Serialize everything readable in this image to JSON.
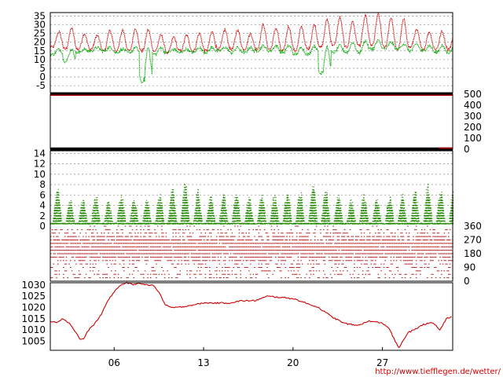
{
  "footer": {
    "url": "http://www.tiefflegen.de/wetter/"
  },
  "chart_data": [
    {
      "type": "line",
      "panel": "temperature",
      "x_start_day": 1,
      "x_end_day": 32.5,
      "ylim": [
        -9,
        37
      ],
      "yticks": [
        -5,
        0,
        5,
        10,
        15,
        20,
        25,
        30,
        35
      ],
      "grid": true,
      "series": [
        {
          "color": "#cc0000",
          "daily_min": [
            17,
            16,
            16,
            16,
            15,
            15,
            15,
            15,
            15,
            14,
            15,
            15,
            15,
            16,
            16,
            16,
            16,
            16,
            15,
            15,
            16,
            17,
            18,
            17,
            18,
            18,
            17,
            16,
            17,
            16,
            16,
            16
          ],
          "daily_max": [
            26,
            28,
            25,
            24,
            27,
            27,
            28,
            27,
            24,
            23,
            24,
            25,
            26,
            27,
            27,
            25,
            30,
            28,
            29,
            29,
            30,
            33,
            34,
            32,
            35,
            36,
            34,
            33,
            27,
            26,
            26,
            26
          ]
        },
        {
          "color": "#00aa00",
          "daily_min": [
            13,
            9,
            14,
            15,
            15,
            14,
            14,
            -3,
            13,
            14,
            14,
            14,
            14,
            15,
            14,
            14,
            15,
            15,
            14,
            13,
            13,
            2,
            14,
            14,
            14,
            16,
            16,
            16,
            15,
            15,
            14,
            14
          ],
          "daily_max": [
            16,
            16,
            16,
            17,
            17,
            16,
            17,
            17,
            17,
            16,
            16,
            17,
            17,
            17,
            17,
            17,
            18,
            18,
            18,
            17,
            18,
            17,
            18,
            20,
            21,
            21,
            20,
            19,
            19,
            18,
            18,
            18
          ]
        }
      ]
    },
    {
      "type": "line",
      "panel": "radiation",
      "ylim": [
        0,
        500
      ],
      "yticks": [
        0,
        100,
        200,
        300,
        400,
        500
      ],
      "series": [
        {
          "color": "#aa0000",
          "values": [
            500
          ]
        }
      ]
    },
    {
      "type": "scatter",
      "panel": "wind-speed",
      "ylim": [
        0,
        14.5
      ],
      "yticks": [
        0,
        2,
        4,
        6,
        8,
        10,
        12,
        14
      ],
      "series": [
        {
          "color": "#228800",
          "daily_peak": [
            7.5,
            5,
            5,
            6,
            4.5,
            6,
            5,
            5,
            6,
            7,
            8,
            7,
            6,
            6,
            6,
            5.5,
            6,
            6,
            7,
            7,
            8,
            7,
            6,
            5,
            6,
            5,
            6,
            6,
            7,
            8,
            7,
            7
          ]
        }
      ]
    },
    {
      "type": "scatter",
      "panel": "wind-direction",
      "ylim": [
        0,
        360
      ],
      "yticks": [
        0,
        90,
        180,
        270,
        360
      ],
      "series": [
        {
          "color": "#aa0000"
        }
      ]
    },
    {
      "type": "line",
      "panel": "pressure",
      "ylim": [
        1001,
        1031
      ],
      "yticks": [
        1005,
        1010,
        1015,
        1020,
        1025,
        1030
      ],
      "x_tick_labels": [
        {
          "day": 6,
          "label": "06"
        },
        {
          "day": 13,
          "label": "13"
        },
        {
          "day": 20,
          "label": "20"
        },
        {
          "day": 27,
          "label": "27"
        }
      ],
      "series": [
        {
          "color": "#cc0000",
          "points": [
            [
              1,
              1014
            ],
            [
              1.5,
              1013.5
            ],
            [
              2,
              1015
            ],
            [
              2.5,
              1013
            ],
            [
              3,
              1009
            ],
            [
              3.3,
              1006
            ],
            [
              3.6,
              1006
            ],
            [
              4,
              1010
            ],
            [
              4.5,
              1013
            ],
            [
              5,
              1017
            ],
            [
              5.5,
              1023
            ],
            [
              6,
              1027
            ],
            [
              6.5,
              1030
            ],
            [
              7,
              1031
            ],
            [
              7.5,
              1030
            ],
            [
              8,
              1031
            ],
            [
              8.5,
              1030
            ],
            [
              9,
              1030
            ],
            [
              9.5,
              1027
            ],
            [
              10,
              1021
            ],
            [
              10.5,
              1020
            ],
            [
              11,
              1020
            ],
            [
              12,
              1021
            ],
            [
              13,
              1022
            ],
            [
              14,
              1022
            ],
            [
              15,
              1022
            ],
            [
              16,
              1023
            ],
            [
              17,
              1023
            ],
            [
              18,
              1025
            ],
            [
              19,
              1024.5
            ],
            [
              20,
              1024
            ],
            [
              21,
              1022
            ],
            [
              22,
              1020
            ],
            [
              23,
              1016
            ],
            [
              24,
              1013
            ],
            [
              25,
              1012
            ],
            [
              26,
              1014
            ],
            [
              27,
              1013
            ],
            [
              27.5,
              1011
            ],
            [
              28,
              1005
            ],
            [
              28.3,
              1002
            ],
            [
              28.6,
              1005
            ],
            [
              29,
              1009
            ],
            [
              29.5,
              1010
            ],
            [
              30,
              1012
            ],
            [
              30.5,
              1013
            ],
            [
              31,
              1013
            ],
            [
              31.5,
              1010
            ],
            [
              32,
              1015
            ],
            [
              32.5,
              1016
            ]
          ]
        }
      ]
    }
  ]
}
